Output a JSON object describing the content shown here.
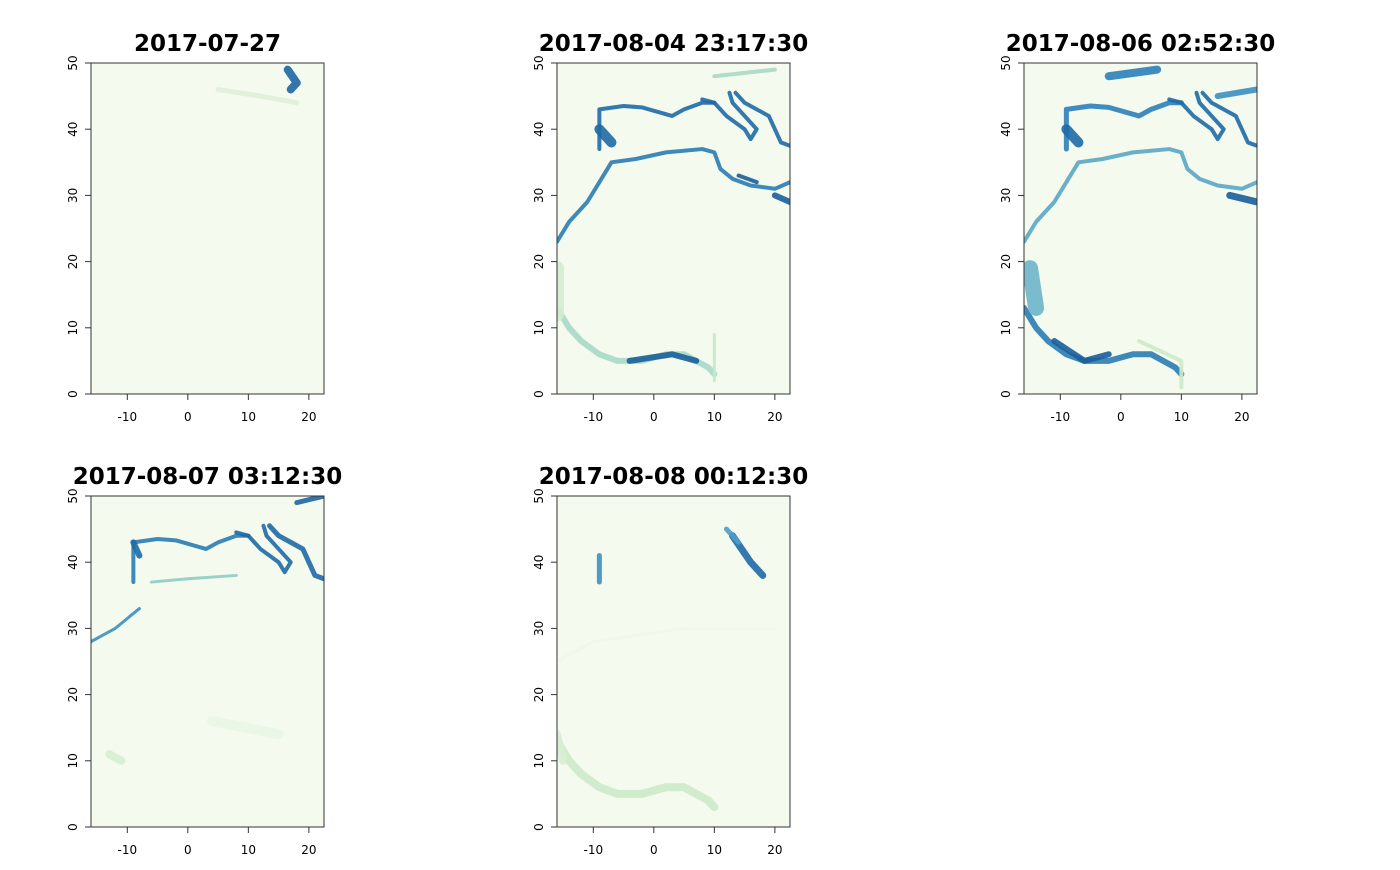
{
  "chart_data": [
    {
      "type": "raster",
      "title": "2017-07-27",
      "xlim": [
        -16,
        22.5
      ],
      "ylim": [
        0,
        50
      ],
      "xticks": [
        -10,
        0,
        10,
        20
      ],
      "yticks": [
        0,
        10,
        20,
        30,
        40,
        50
      ]
    },
    {
      "type": "raster",
      "title": "2017-08-04 23:17:30",
      "xlim": [
        -16,
        22.5
      ],
      "ylim": [
        0,
        50
      ],
      "xticks": [
        -10,
        0,
        10,
        20
      ],
      "yticks": [
        0,
        10,
        20,
        30,
        40,
        50
      ]
    },
    {
      "type": "raster",
      "title": "2017-08-06 02:52:30",
      "xlim": [
        -16,
        22.5
      ],
      "ylim": [
        0,
        50
      ],
      "xticks": [
        -10,
        0,
        10,
        20
      ],
      "yticks": [
        0,
        10,
        20,
        30,
        40,
        50
      ]
    },
    {
      "type": "raster",
      "title": "2017-08-07 03:12:30",
      "xlim": [
        -16,
        22.5
      ],
      "ylim": [
        0,
        50
      ],
      "xticks": [
        -10,
        0,
        10,
        20
      ],
      "yticks": [
        0,
        10,
        20,
        30,
        40,
        50
      ]
    },
    {
      "type": "raster",
      "title": "2017-08-08 00:12:30",
      "xlim": [
        -16,
        22.5
      ],
      "ylim": [
        0,
        50
      ],
      "xticks": [
        -10,
        0,
        10,
        20
      ],
      "yticks": [
        0,
        10,
        20,
        30,
        40,
        50
      ]
    }
  ]
}
